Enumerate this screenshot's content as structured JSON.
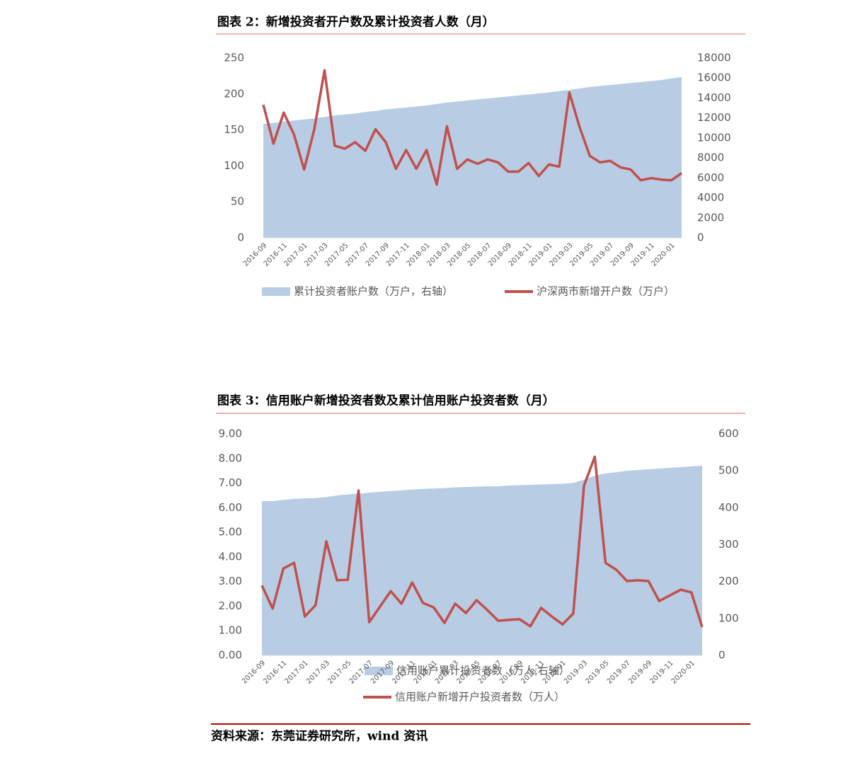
{
  "chart_data": [
    {
      "type": "combo",
      "title": "图表 2：新增投资者开户数及累计投资者人数（月）",
      "categories": [
        "2016-09",
        null,
        "2016-11",
        null,
        "2017-01",
        null,
        "2017-03",
        null,
        "2017-05",
        null,
        "2017-07",
        null,
        "2017-09",
        null,
        "2017-11",
        null,
        "2018-01",
        null,
        "2018-03",
        null,
        "2018-05",
        null,
        "2018-07",
        null,
        "2018-09",
        null,
        "2018-11",
        null,
        "2019-01",
        null,
        "2019-03",
        null,
        "2019-05",
        null,
        "2019-07",
        null,
        "2019-09",
        null,
        "2019-11",
        null,
        "2020-01",
        null
      ],
      "series": [
        {
          "name": "累计投资者账户数（万户，右轴）",
          "type": "area",
          "axis": "y2",
          "color": "#b8cce4",
          "values": [
            11400,
            11500,
            11650,
            11750,
            11850,
            11950,
            12100,
            12250,
            12350,
            12450,
            12600,
            12700,
            12850,
            12950,
            13050,
            13150,
            13250,
            13400,
            13550,
            13650,
            13750,
            13850,
            13950,
            14050,
            14150,
            14250,
            14350,
            14450,
            14550,
            14700,
            14800,
            14950,
            15100,
            15200,
            15300,
            15400,
            15500,
            15600,
            15700,
            15800,
            15950,
            16100
          ]
        },
        {
          "name": "沪深两市新增开户数（万户）",
          "type": "line",
          "color": "#c0504d",
          "values": [
            185,
            131,
            174,
            144,
            95,
            151,
            233,
            128,
            124,
            133,
            121,
            151,
            133,
            96,
            122,
            96,
            122,
            74,
            155,
            96,
            109,
            103,
            109,
            105,
            92,
            92,
            104,
            86,
            102,
            99,
            202,
            154,
            114,
            105,
            107,
            98,
            95,
            80,
            83,
            81,
            80,
            90
          ]
        }
      ],
      "ylim": [
        0,
        250
      ],
      "yticks": [
        0,
        50,
        100,
        150,
        200,
        250
      ],
      "y2lim": [
        0,
        18000
      ],
      "y2ticks": [
        0,
        2000,
        4000,
        6000,
        8000,
        10000,
        12000,
        14000,
        16000,
        18000
      ]
    },
    {
      "type": "combo",
      "title": "图表 3：信用账户新增投资者数及累计信用账户投资者数（月）",
      "categories": [
        "2016-09",
        null,
        "2016-11",
        null,
        "2017-01",
        null,
        "2017-03",
        null,
        "2017-05",
        null,
        "2017-07",
        null,
        "2017-09",
        null,
        "2017-11",
        null,
        "2018-01",
        null,
        "2018-03",
        null,
        "2018-05",
        null,
        "2018-07",
        null,
        "2018-09",
        null,
        "2018-11",
        null,
        "2019-01",
        null,
        "2019-03",
        null,
        "2019-05",
        null,
        "2019-07",
        null,
        "2019-09",
        null,
        "2019-11",
        null,
        "2020-01",
        null
      ],
      "series": [
        {
          "name": "信用账户累计投资者数（万人,右轴）",
          "type": "area",
          "axis": "y2",
          "color": "#b8cce4",
          "values": [
            418,
            418,
            421,
            424,
            425,
            426,
            429,
            433,
            436,
            438,
            441,
            443,
            445,
            447,
            449,
            451,
            452,
            453,
            455,
            456,
            457,
            458,
            458,
            460,
            461,
            462,
            463,
            464,
            465,
            467,
            476,
            487,
            493,
            496,
            500,
            502,
            504,
            506,
            508,
            510,
            512,
            514
          ]
        },
        {
          "name": "信用账户新增开户投资者数（万人）",
          "type": "line",
          "color": "#c0504d",
          "values": [
            2.84,
            1.9,
            3.53,
            3.76,
            1.58,
            2.04,
            4.63,
            3.05,
            3.07,
            6.7,
            1.35,
            1.98,
            2.61,
            2.1,
            2.96,
            2.13,
            1.95,
            1.32,
            2.1,
            1.72,
            2.24,
            1.84,
            1.41,
            1.44,
            1.47,
            1.18,
            1.93,
            1.58,
            1.26,
            1.7,
            6.9,
            8.07,
            3.76,
            3.48,
            3.02,
            3.05,
            3.02,
            2.21,
            2.44,
            2.67,
            2.56,
            1.15
          ]
        }
      ],
      "ylim": [
        0,
        9
      ],
      "yticks": [
        {
          "value": 0,
          "label": "0.00"
        },
        {
          "value": 1,
          "label": "1.00"
        },
        {
          "value": 2,
          "label": "2.00"
        },
        {
          "value": 3,
          "label": "3.00"
        },
        {
          "value": 4,
          "label": "4.00"
        },
        {
          "value": 5,
          "label": "5.00"
        },
        {
          "value": 6,
          "label": "6.00"
        },
        {
          "value": 7,
          "label": "7.00"
        },
        {
          "value": 8,
          "label": "8.00"
        },
        {
          "value": 9,
          "label": "9.00"
        }
      ],
      "y2lim": [
        0,
        600
      ],
      "y2ticks": [
        0,
        100,
        200,
        300,
        400,
        500,
        600
      ]
    }
  ],
  "source": "资料来源：东莞证券研究所，wind 资讯"
}
